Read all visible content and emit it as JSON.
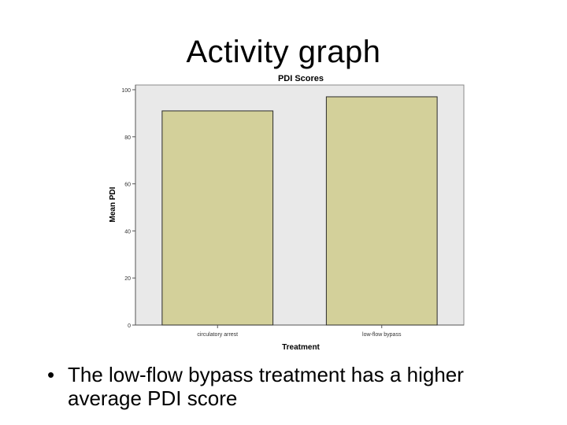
{
  "slide": {
    "title": "Activity graph",
    "bullet_symbol": "•",
    "bullet_text": "The low-flow bypass treatment has a higher average PDI score"
  },
  "colors": {
    "plot_background": "#e9e9e9",
    "bar_fill": "#d3d09a",
    "bar_stroke": "#2b2b2b"
  },
  "chart_data": {
    "type": "bar",
    "title": "PDI Scores",
    "xlabel": "Treatment",
    "ylabel": "Mean PDI",
    "categories": [
      "circulatory arrest",
      "low-flow bypass"
    ],
    "values": [
      91,
      97
    ],
    "ylim": [
      0,
      100
    ],
    "yticks": [
      0,
      20,
      40,
      60,
      80,
      100
    ],
    "grid": false,
    "legend": "none"
  }
}
